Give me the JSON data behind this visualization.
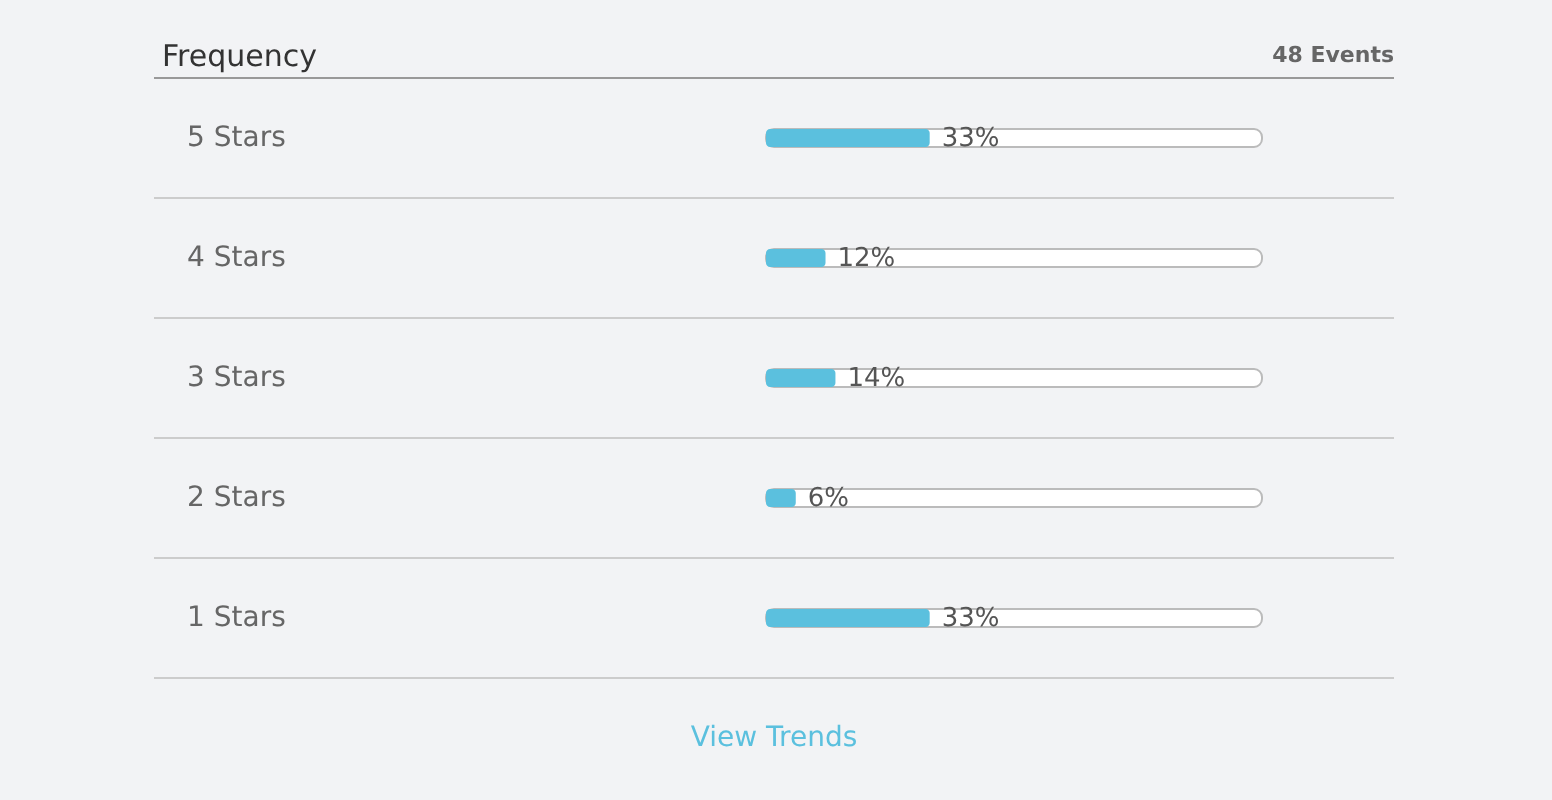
{
  "chart_data": {
    "type": "bar",
    "orientation": "horizontal",
    "title": "Frequency",
    "categories": [
      "5 Stars",
      "4 Stars",
      "3 Stars",
      "2 Stars",
      "1 Stars"
    ],
    "values": [
      33,
      12,
      14,
      6,
      33
    ],
    "color": "#5bc0de",
    "value_labels": [
      "33%",
      "12%",
      "14%",
      "6%",
      "33%"
    ],
    "xlim": [
      0,
      100
    ],
    "tick_labels": "y",
    "grid": "y",
    "annotations": [
      "48 Events",
      "View Trends"
    ]
  }
}
